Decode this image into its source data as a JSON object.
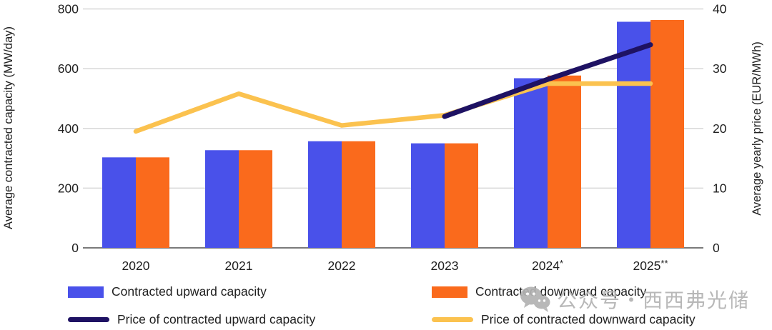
{
  "chart_data": {
    "type": "bar",
    "subtype": "grouped-bars-with-lines-combo",
    "categories": [
      "2020",
      "2021",
      "2022",
      "2023",
      "2024*",
      "2025**"
    ],
    "series": [
      {
        "name": "Contracted upward capacity",
        "render": "bar",
        "axis": "left",
        "color": "#4951ea",
        "values": [
          303,
          327,
          357,
          350,
          568,
          757
        ]
      },
      {
        "name": "Contracted downward capacity",
        "render": "bar",
        "axis": "left",
        "color": "#fa6a1c",
        "values": [
          303,
          327,
          357,
          350,
          577,
          763
        ]
      },
      {
        "name": "Price of contracted upward capacity",
        "render": "line",
        "axis": "right",
        "color": "#1e1263",
        "values": [
          null,
          null,
          null,
          22,
          28.2,
          34
        ]
      },
      {
        "name": "Price of contracted downward capacity",
        "render": "line",
        "axis": "right",
        "color": "#fbc24f",
        "values": [
          19.5,
          25.8,
          20.5,
          22.2,
          27.5,
          27.5
        ]
      }
    ],
    "left_axis": {
      "label": "Average contracted capacity (MW/day)",
      "ticks": [
        0,
        200,
        400,
        600,
        800
      ],
      "range": [
        0,
        800
      ]
    },
    "right_axis": {
      "label": "Average yearly price (EUR/MWh)",
      "ticks": [
        0,
        10,
        20,
        30,
        40
      ],
      "range": [
        0,
        40
      ]
    },
    "grid": true,
    "legend_position": "bottom",
    "colors": {
      "gridline": "#d8d8d8",
      "axis_line": "#7a7a7a",
      "text": "#202020"
    }
  },
  "legend": {
    "upward_bar_label": "Contracted upward capacity",
    "downward_bar_label": "Contracted downward capacity",
    "upward_price_label": "Price of contracted upward capacity",
    "downward_price_label": "Price of contracted downward capacity"
  },
  "watermark": {
    "icon": "wechat-icon",
    "text": "公众号・西西弗光储"
  }
}
